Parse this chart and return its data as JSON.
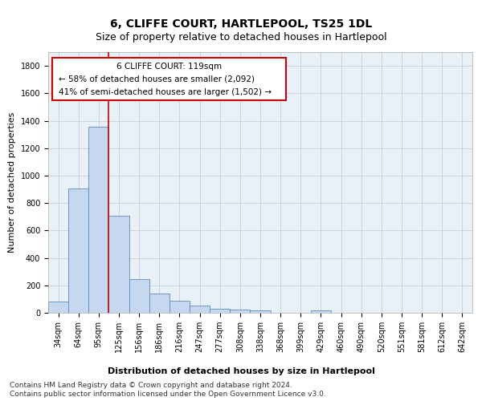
{
  "title": "6, CLIFFE COURT, HARTLEPOOL, TS25 1DL",
  "subtitle": "Size of property relative to detached houses in Hartlepool",
  "xlabel": "Distribution of detached houses by size in Hartlepool",
  "ylabel": "Number of detached properties",
  "categories": [
    "34sqm",
    "64sqm",
    "95sqm",
    "125sqm",
    "156sqm",
    "186sqm",
    "216sqm",
    "247sqm",
    "277sqm",
    "308sqm",
    "338sqm",
    "368sqm",
    "399sqm",
    "429sqm",
    "460sqm",
    "490sqm",
    "520sqm",
    "551sqm",
    "581sqm",
    "612sqm",
    "642sqm"
  ],
  "values": [
    80,
    905,
    1355,
    710,
    245,
    140,
    85,
    50,
    30,
    25,
    15,
    0,
    0,
    20,
    0,
    0,
    0,
    0,
    0,
    0,
    0
  ],
  "bar_color": "#c5d8f0",
  "bar_edge_color": "#5a8bbf",
  "ylim": [
    0,
    1900
  ],
  "yticks": [
    0,
    200,
    400,
    600,
    800,
    1000,
    1200,
    1400,
    1600,
    1800
  ],
  "property_line_x": 2.5,
  "annotation_box_text_line1": "6 CLIFFE COURT: 119sqm",
  "annotation_box_text_line2": "← 58% of detached houses are smaller (2,092)",
  "annotation_box_text_line3": "41% of semi-detached houses are larger (1,502) →",
  "footer_line1": "Contains HM Land Registry data © Crown copyright and database right 2024.",
  "footer_line2": "Contains public sector information licensed under the Open Government Licence v3.0.",
  "bg_color": "#ffffff",
  "grid_color": "#cccccc",
  "line_color": "#cc0000",
  "title_fontsize": 10,
  "subtitle_fontsize": 9,
  "axis_label_fontsize": 8,
  "tick_fontsize": 7,
  "footer_fontsize": 6.5
}
